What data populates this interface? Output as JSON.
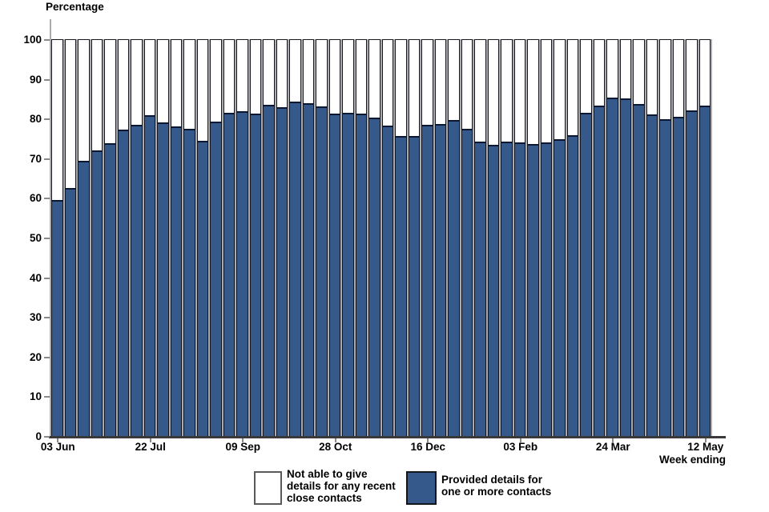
{
  "chart": {
    "y_axis_title": "Percentage",
    "x_axis_title": "Week ending",
    "y_ticks": [
      0,
      10,
      20,
      30,
      40,
      50,
      60,
      70,
      80,
      90,
      100
    ],
    "legend": {
      "not_able": {
        "lines": [
          "Not able to give",
          "details for any recent",
          "close contacts"
        ]
      },
      "provided": {
        "lines": [
          "Provided details for",
          "one or more contacts"
        ]
      }
    },
    "colors": {
      "bar_blue": "#36598C",
      "bar_white": "#FFFFFF",
      "bar_border_dark": "#151522",
      "blue_top_border": "#0B1630",
      "axis_dark": "#3A3A3A",
      "axis_light": "#ABABAB"
    }
  },
  "chart_data": {
    "type": "bar",
    "stacked": true,
    "stack_total": 100,
    "orientation": "vertical",
    "n_bars": 50,
    "title": "",
    "xlabel": "Week ending",
    "ylabel": "Percentage",
    "ylim": [
      0,
      100
    ],
    "grid": false,
    "legend_position": "bottom",
    "x_tick_labels": [
      {
        "index": 0,
        "label": "03 Jun"
      },
      {
        "index": 7,
        "label": "22 Jul"
      },
      {
        "index": 14,
        "label": "09 Sep"
      },
      {
        "index": 21,
        "label": "28 Oct"
      },
      {
        "index": 28,
        "label": "16 Dec"
      },
      {
        "index": 35,
        "label": "03 Feb"
      },
      {
        "index": 42,
        "label": "24 Mar"
      },
      {
        "index": 49,
        "label": "12 May"
      }
    ],
    "series": [
      {
        "name": "Provided details for one or more contacts",
        "color": "#36598C",
        "values": [
          59.5,
          62.6,
          69.5,
          72.0,
          73.9,
          77.3,
          78.4,
          80.8,
          79.1,
          78.0,
          77.5,
          74.4,
          79.2,
          81.4,
          81.8,
          81.3,
          83.5,
          82.9,
          84.3,
          84.0,
          83.1,
          81.2,
          81.5,
          81.3,
          80.2,
          78.2,
          75.7,
          75.7,
          78.4,
          78.7,
          79.6,
          77.4,
          74.3,
          73.5,
          74.3,
          74.1,
          73.6,
          74.0,
          74.8,
          75.8,
          81.4,
          83.4,
          85.4,
          85.2,
          83.8,
          81.1,
          79.8,
          80.5,
          82.0,
          83.4
        ]
      },
      {
        "name": "Not able to give details for any recent close contacts",
        "color": "#FFFFFF",
        "values_definition": "100 minus the corresponding value of the first series (stacks to 100)"
      }
    ]
  }
}
